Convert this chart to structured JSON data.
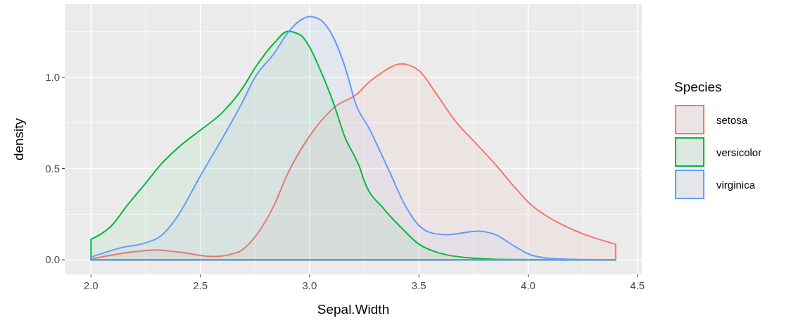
{
  "chart_data": {
    "type": "area",
    "xlabel": "Sepal.Width",
    "ylabel": "density",
    "legend_title": "Species",
    "legend": "right",
    "grid": true,
    "xlim": [
      1.88,
      4.52
    ],
    "ylim": [
      -0.08,
      1.4
    ],
    "xticks": [
      {
        "value": 2,
        "label": "2.0"
      },
      {
        "value": 2.5,
        "label": "2.5"
      },
      {
        "value": 3,
        "label": "3.0"
      },
      {
        "value": 3.5,
        "label": "3.5"
      },
      {
        "value": 4,
        "label": "4.0"
      },
      {
        "value": 4.5,
        "label": "4.5"
      }
    ],
    "yticks": [
      {
        "value": 0,
        "label": "0.0"
      },
      {
        "value": 0.5,
        "label": "0.5"
      },
      {
        "value": 1,
        "label": "1.0"
      }
    ],
    "series": [
      {
        "name": "setosa",
        "color": "#f8766d",
        "x": [
          2.0,
          2.14,
          2.3,
          2.41,
          2.56,
          2.67,
          2.75,
          2.84,
          2.9,
          3.0,
          3.11,
          3.23,
          3.25,
          3.33,
          3.42,
          3.5,
          3.58,
          3.67,
          3.75,
          3.85,
          3.94,
          4.01,
          4.12,
          4.26,
          4.4
        ],
        "values": [
          0.005,
          0.035,
          0.054,
          0.041,
          0.018,
          0.041,
          0.125,
          0.305,
          0.472,
          0.678,
          0.832,
          0.922,
          0.948,
          1.025,
          1.073,
          1.037,
          0.909,
          0.755,
          0.652,
          0.523,
          0.395,
          0.305,
          0.215,
          0.138,
          0.086
        ]
      },
      {
        "name": "versicolor",
        "color": "#00ba38",
        "x": [
          2.0,
          2.09,
          2.17,
          2.25,
          2.32,
          2.41,
          2.5,
          2.6,
          2.69,
          2.75,
          2.84,
          2.9,
          2.96,
          3.0,
          3.05,
          3.11,
          3.16,
          3.23,
          3.25,
          3.34,
          3.42,
          3.5,
          3.6,
          3.75,
          3.9,
          4.1,
          4.4
        ],
        "values": [
          0.112,
          0.182,
          0.305,
          0.42,
          0.523,
          0.626,
          0.71,
          0.806,
          0.934,
          1.05,
          1.19,
          1.252,
          1.23,
          1.166,
          1.037,
          0.857,
          0.678,
          0.504,
          0.433,
          0.279,
          0.176,
          0.086,
          0.035,
          0.009,
          0.002,
          0,
          0
        ]
      },
      {
        "name": "virginica",
        "color": "#619cff",
        "x": [
          2.0,
          2.14,
          2.25,
          2.32,
          2.39,
          2.5,
          2.6,
          2.69,
          2.75,
          2.84,
          2.9,
          2.96,
          3.0,
          3.05,
          3.12,
          3.18,
          3.2,
          3.28,
          3.37,
          3.44,
          3.5,
          3.57,
          3.63,
          3.77,
          3.85,
          3.94,
          4.01,
          4.12,
          4.4
        ],
        "values": [
          0.015,
          0.067,
          0.093,
          0.131,
          0.228,
          0.459,
          0.664,
          0.857,
          0.999,
          1.134,
          1.243,
          1.314,
          1.333,
          1.314,
          1.19,
          0.986,
          0.896,
          0.703,
          0.472,
          0.292,
          0.189,
          0.144,
          0.138,
          0.157,
          0.138,
          0.073,
          0.028,
          0.006,
          0
        ]
      }
    ]
  }
}
